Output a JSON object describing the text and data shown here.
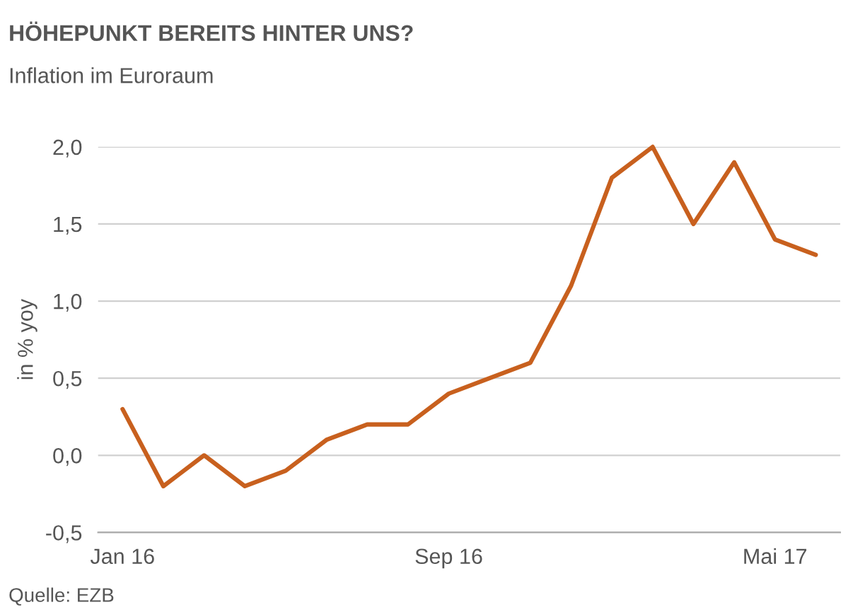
{
  "chart_data": {
    "type": "line",
    "title": "HÖHEPUNKT BEREITS HINTER UNS?",
    "subtitle": "Inflation im Euroraum",
    "ylabel": "in % yoy",
    "categories": [
      "Jan 16",
      null,
      null,
      null,
      null,
      null,
      null,
      null,
      "Sep 16",
      null,
      null,
      null,
      null,
      null,
      null,
      null,
      "Mai 17",
      null
    ],
    "series": [
      {
        "color": "#c8601e",
        "values": [
          0.3,
          -0.2,
          0.0,
          -0.2,
          -0.1,
          0.1,
          0.2,
          0.2,
          0.4,
          0.5,
          0.6,
          1.1,
          1.8,
          2.0,
          1.5,
          1.9,
          1.4,
          1.3
        ]
      }
    ],
    "ylim": [
      -0.5,
      2.0
    ],
    "yticks": [
      {
        "value": -0.5,
        "label": "-0,5"
      },
      {
        "value": 0.0,
        "label": "0,0"
      },
      {
        "value": 0.5,
        "label": "0,5"
      },
      {
        "value": 1.0,
        "label": "1,0"
      },
      {
        "value": 1.5,
        "label": "1,5"
      },
      {
        "value": 2.0,
        "label": "2,0"
      }
    ],
    "grid": "y",
    "legend": false,
    "marker": "none",
    "line_style": "solid",
    "annotations": [
      "Quelle: EZB"
    ]
  }
}
